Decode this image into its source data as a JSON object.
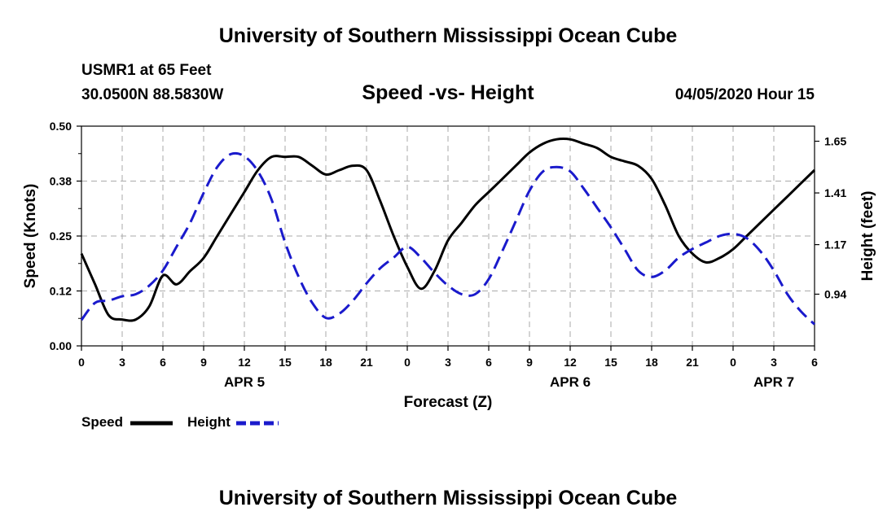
{
  "header": {
    "title": "University of Southern Mississippi Ocean Cube",
    "station": "USMR1 at 65 Feet",
    "coords": "30.0500N 88.5830W",
    "subtitle": "Speed -vs- Height",
    "timestamp": "04/05/2020 Hour 15"
  },
  "footer": {
    "title": "University of Southern Mississippi Ocean Cube"
  },
  "legend": {
    "speed_label": "Speed",
    "height_label": "Height"
  },
  "colors": {
    "speed": "#000000",
    "height": "#1a1acc",
    "grid": "#aaaaaa"
  },
  "chart_data": {
    "type": "line",
    "xlabel": "Forecast (Z)",
    "ylabel_left": "Speed (Knots)",
    "ylabel_right": "Height (feet)",
    "x_range_hours": [
      0,
      54
    ],
    "x_tick_labels": [
      "0",
      "3",
      "6",
      "9",
      "12",
      "15",
      "18",
      "21",
      "0",
      "3",
      "6",
      "9",
      "12",
      "15",
      "18",
      "21",
      "0",
      "3",
      "6"
    ],
    "date_labels": [
      {
        "hour": 12,
        "label": "APR 5"
      },
      {
        "hour": 36,
        "label": "APR 6"
      },
      {
        "hour": 51,
        "label": "APR 7"
      }
    ],
    "y_left": {
      "range": [
        0,
        0.5
      ],
      "ticks": [
        "0.00",
        "0.12",
        "0.25",
        "0.38",
        "0.50"
      ]
    },
    "y_right": {
      "range": [
        0.7,
        1.72
      ],
      "ticks": [
        "0.94",
        "1.17",
        "1.41",
        "1.65"
      ],
      "tick_values": [
        0.94,
        1.17,
        1.41,
        1.65
      ]
    },
    "series": [
      {
        "name": "Speed",
        "axis": "left",
        "x": [
          0,
          1,
          2,
          3,
          4,
          5,
          6,
          7,
          8,
          9,
          10,
          11,
          12,
          13,
          14,
          15,
          16,
          17,
          18,
          19,
          20,
          21,
          22,
          23,
          24,
          25,
          26,
          27,
          28,
          29,
          30,
          31,
          32,
          33,
          34,
          35,
          36,
          37,
          38,
          39,
          40,
          41,
          42,
          43,
          44,
          45,
          46,
          47,
          48,
          49,
          50,
          51,
          52,
          53,
          54
        ],
        "values": [
          0.21,
          0.14,
          0.07,
          0.06,
          0.06,
          0.09,
          0.16,
          0.14,
          0.17,
          0.2,
          0.25,
          0.3,
          0.35,
          0.4,
          0.43,
          0.43,
          0.43,
          0.41,
          0.39,
          0.4,
          0.41,
          0.4,
          0.33,
          0.25,
          0.18,
          0.13,
          0.17,
          0.24,
          0.28,
          0.32,
          0.35,
          0.38,
          0.41,
          0.44,
          0.46,
          0.47,
          0.47,
          0.46,
          0.45,
          0.43,
          0.42,
          0.41,
          0.38,
          0.32,
          0.25,
          0.21,
          0.19,
          0.2,
          0.22,
          0.25,
          0.28,
          0.31,
          0.34,
          0.37,
          0.4
        ]
      },
      {
        "name": "Height",
        "axis": "right",
        "x": [
          0,
          1,
          2,
          3,
          4,
          5,
          6,
          7,
          8,
          9,
          10,
          11,
          12,
          13,
          14,
          15,
          16,
          17,
          18,
          19,
          20,
          21,
          22,
          23,
          24,
          25,
          26,
          27,
          28,
          29,
          30,
          31,
          32,
          33,
          34,
          35,
          36,
          37,
          38,
          39,
          40,
          41,
          42,
          43,
          44,
          45,
          46,
          47,
          48,
          49,
          50,
          51,
          52,
          53,
          54
        ],
        "values": [
          0.82,
          0.9,
          0.91,
          0.93,
          0.94,
          0.98,
          1.05,
          1.16,
          1.27,
          1.41,
          1.53,
          1.59,
          1.58,
          1.51,
          1.38,
          1.18,
          1.02,
          0.9,
          0.83,
          0.85,
          0.91,
          0.99,
          1.06,
          1.11,
          1.16,
          1.11,
          1.04,
          0.98,
          0.94,
          0.94,
          1.01,
          1.14,
          1.28,
          1.42,
          1.51,
          1.53,
          1.51,
          1.43,
          1.34,
          1.25,
          1.15,
          1.05,
          1.02,
          1.05,
          1.11,
          1.15,
          1.18,
          1.21,
          1.22,
          1.2,
          1.14,
          1.05,
          0.94,
          0.86,
          0.8
        ]
      }
    ]
  }
}
